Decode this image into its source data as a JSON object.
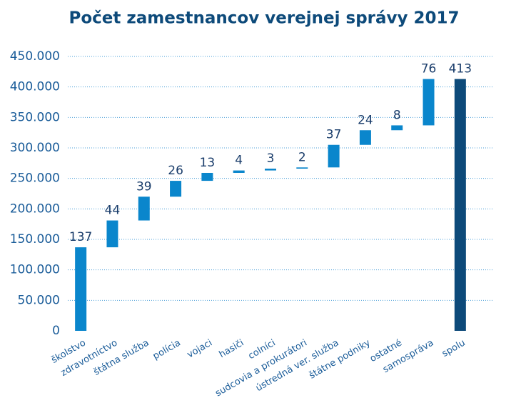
{
  "chart_data": {
    "type": "waterfall",
    "title": "Počet zamestnancov verejnej správy 2017",
    "categories": [
      "školstvo",
      "zdravotníctvo",
      "štátna služba",
      "polícia",
      "vojaci",
      "hasiči",
      "colníci",
      "sudcovia a prokurátori",
      "ústredná ver. služba",
      "štátne podniky",
      "ostatné",
      "samospráva",
      "spolu"
    ],
    "values": [
      137000,
      44000,
      39000,
      26000,
      13000,
      4000,
      3000,
      2000,
      37000,
      24000,
      8000,
      76000,
      413000
    ],
    "value_labels": [
      "137",
      "44",
      "39",
      "26",
      "13",
      "4",
      "3",
      "2",
      "37",
      "24",
      "8",
      "76",
      "413"
    ],
    "is_total": [
      false,
      false,
      false,
      false,
      false,
      false,
      false,
      false,
      false,
      false,
      false,
      false,
      true
    ],
    "color": "#0a86cc",
    "total_color": "#0d4a7a",
    "ylim": [
      0,
      450000
    ],
    "yticks": [
      0,
      {
        "value": 50000,
        "label": "50.000"
      },
      {
        "value": 100000,
        "label": "100.000"
      },
      {
        "value": 150000,
        "label": "150.000"
      },
      {
        "value": 200000,
        "label": "200.000"
      },
      {
        "value": 250000,
        "label": "250.000"
      },
      {
        "value": 300000,
        "label": "300.000"
      },
      {
        "value": 350000,
        "label": "350.000"
      },
      {
        "value": 400000,
        "label": "400.000"
      },
      {
        "value": 450000,
        "label": "450.000"
      }
    ],
    "grid": true
  }
}
